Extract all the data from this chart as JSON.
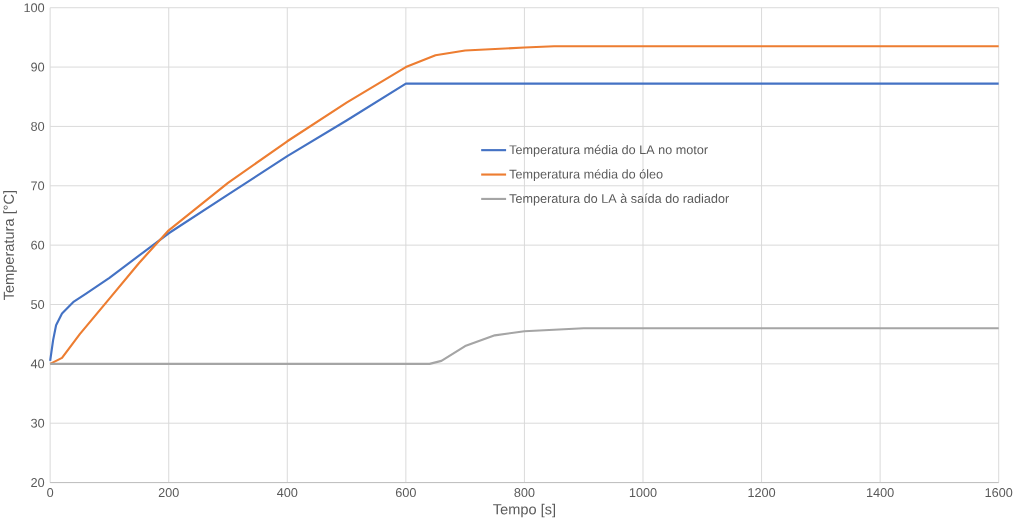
{
  "chart_data": {
    "type": "line",
    "xlabel": "Tempo [s]",
    "ylabel": "Temperatura [°C]",
    "xlim": [
      0,
      1600
    ],
    "ylim": [
      20,
      100
    ],
    "xticks": [
      0,
      200,
      400,
      600,
      800,
      1000,
      1200,
      1400,
      1600
    ],
    "yticks": [
      20,
      30,
      40,
      50,
      60,
      70,
      80,
      90,
      100
    ],
    "grid": true,
    "legend": "right",
    "marker": "none",
    "line_style": "solid",
    "series": [
      {
        "name": "Temperatura média do LA no motor",
        "color": "#4472c4",
        "x": [
          0,
          5,
          10,
          20,
          40,
          60,
          100,
          160,
          200,
          300,
          400,
          500,
          600,
          1600
        ],
        "values": [
          40.5,
          44,
          46.5,
          48.5,
          50.5,
          51.8,
          54.5,
          59,
          62,
          68.5,
          75,
          81,
          87.2,
          87.2
        ]
      },
      {
        "name": "Temperatura média do óleo",
        "color": "#ed7d31",
        "x": [
          0,
          20,
          50,
          100,
          150,
          200,
          300,
          400,
          500,
          600,
          650,
          700,
          800,
          850,
          1600
        ],
        "values": [
          40,
          41,
          45,
          51,
          57,
          62.5,
          70.5,
          77.5,
          84,
          90,
          92,
          92.8,
          93.3,
          93.5,
          93.5
        ]
      },
      {
        "name": "Temperatura do LA à saída do radiador",
        "color": "#a5a5a5",
        "x": [
          0,
          640,
          660,
          700,
          750,
          800,
          900,
          1600
        ],
        "values": [
          40,
          40,
          40.5,
          43,
          44.8,
          45.5,
          46,
          46
        ]
      }
    ]
  }
}
